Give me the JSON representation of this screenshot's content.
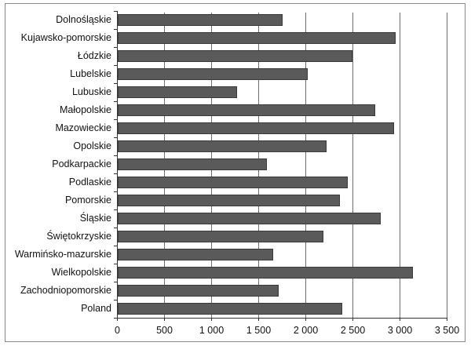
{
  "chart_data": {
    "type": "bar",
    "orientation": "horizontal",
    "title": "",
    "xlabel": "",
    "ylabel": "",
    "categories": [
      "Dolnośląskie",
      "Kujawsko-pomorskie",
      "Łódzkie",
      "Lubelskie",
      "Lubuskie",
      "Małopolskie",
      "Mazowieckie",
      "Opolskie",
      "Podkarpackie",
      "Podlaskie",
      "Pomorskie",
      "Śląskie",
      "Świętokrzyskie",
      "Warmińsko-mazurskie",
      "Wielkopolskie",
      "Zachodniopomorskie",
      "Poland"
    ],
    "values": [
      1750,
      2950,
      2490,
      2020,
      1270,
      2730,
      2930,
      2220,
      1580,
      2440,
      2360,
      2790,
      2180,
      1650,
      3130,
      1710,
      2380
    ],
    "xlim": [
      0,
      3500
    ],
    "xticks": [
      0,
      500,
      1000,
      1500,
      2000,
      2500,
      3000,
      3500
    ],
    "xtick_labels": [
      "0",
      "500",
      "1 000",
      "1 500",
      "2 000",
      "2 500",
      "3 000",
      "3 500"
    ],
    "grid": "vertical major gridlines",
    "legend": "none",
    "bar_color": "#5a5a5a"
  }
}
